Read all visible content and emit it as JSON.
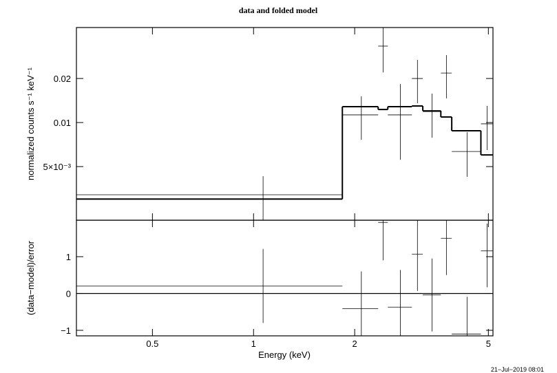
{
  "chart_data": [
    {
      "type": "errorbar-step",
      "title": "data and folded model",
      "ylabel": "normalized counts s⁻¹ keV⁻¹",
      "xscale": "log",
      "yscale": "log",
      "xlim": [
        0.297,
        5.16
      ],
      "ylim": [
        0.00215,
        0.0446
      ],
      "xticks": [
        0.5,
        1,
        2,
        5
      ],
      "yticks": [
        {
          "value": 0.005,
          "label": "5×10⁻³"
        },
        0.01,
        0.02
      ],
      "color": "#000000",
      "data": {
        "x_low": [
          0.297,
          1.838,
          2.349,
          2.51,
          2.96,
          3.19,
          3.61,
          3.89,
          4.75
        ],
        "x_high": [
          1.838,
          2.349,
          2.51,
          2.96,
          3.19,
          3.61,
          3.89,
          4.75,
          5.16
        ],
        "values": [
          0.00321,
          0.01128,
          0.0333,
          0.01128,
          0.02,
          0.01188,
          0.0218,
          0.00634,
          0.0098
        ],
        "y_lower": [
          0.0019,
          0.00762,
          0.022,
          0.00557,
          0.01355,
          0.00787,
          0.01463,
          0.00425,
          0.00649
        ],
        "y_upper": [
          0.0043,
          0.0151,
          0.05,
          0.01833,
          0.0268,
          0.01577,
          0.0289,
          0.00859,
          0.01297
        ]
      },
      "model": {
        "values": [
          0.003,
          0.01283,
          0.01228,
          0.01283,
          0.01297,
          0.01202,
          0.01091,
          0.00879,
          0.00601
        ]
      }
    },
    {
      "type": "residual",
      "ylabel": "(data−model)/error",
      "xlabel": "Energy (keV)",
      "xscale": "log",
      "yscale": "linear",
      "xlim": [
        0.297,
        5.16
      ],
      "ylim": [
        -1.15,
        1.99
      ],
      "xticks": [
        0.5,
        1,
        2,
        5
      ],
      "yticks": [
        {
          "value": -1,
          "label": "−1"
        },
        0,
        1
      ],
      "reference_line": 0,
      "color": "#000000",
      "data": {
        "values": [
          0.2,
          -0.41,
          1.93,
          -0.37,
          1.07,
          -0.04,
          1.5,
          -1.1,
          1.16
        ],
        "y_lower": [
          -0.8,
          -2,
          0.9,
          -2,
          0.07,
          -1.03,
          0.5,
          -2,
          0.17
        ],
        "y_upper": [
          1.21,
          0.6,
          2.5,
          0.64,
          2.5,
          0.95,
          2.5,
          -0.09,
          1.9
        ]
      }
    }
  ],
  "timestamp": "21−Jul−2019 08:01"
}
